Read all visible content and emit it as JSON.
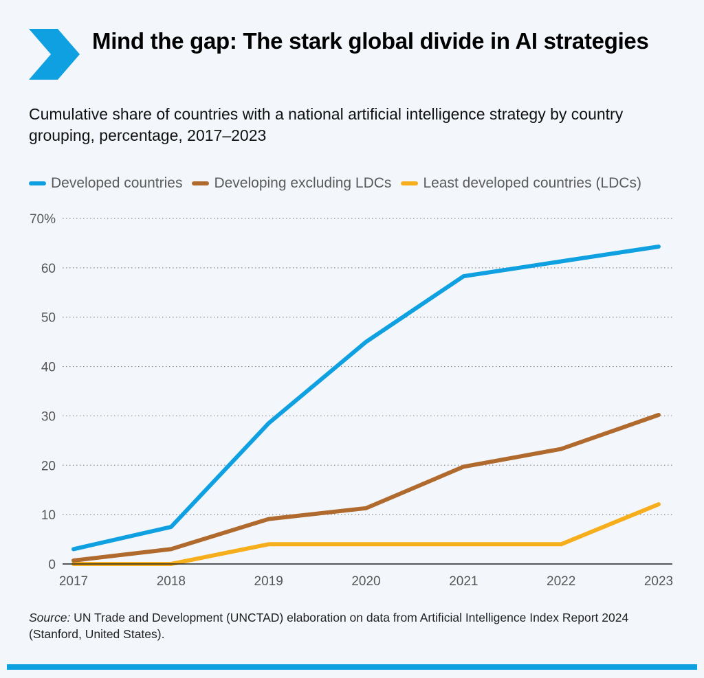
{
  "header": {
    "title": "Mind the gap: The stark global divide in AI strategies",
    "subtitle": "Cumulative share of countries with a national artificial intelligence strategy by country grouping, percentage, 2017–2023",
    "chevron_icon": "chevron-right-icon",
    "accent_color": "#0ea0e0"
  },
  "legend": {
    "items": [
      {
        "label": "Developed countries",
        "color": "#0ea0e0"
      },
      {
        "label": "Developing excluding LDCs",
        "color": "#b06a2e"
      },
      {
        "label": "Least developed countries (LDCs)",
        "color": "#f7ae1c"
      }
    ]
  },
  "chart_data": {
    "type": "line",
    "title": "",
    "xlabel": "",
    "ylabel": "",
    "x": [
      "2017",
      "2018",
      "2019",
      "2020",
      "2021",
      "2022",
      "2023"
    ],
    "y_ticks": [
      "0",
      "10",
      "20",
      "30",
      "40",
      "50",
      "60",
      "70%"
    ],
    "ylim": [
      0,
      70
    ],
    "grid": true,
    "grid_style": "dotted horizontal",
    "legend_position": "top-left",
    "series": [
      {
        "name": "Developed countries",
        "color": "#0ea0e0",
        "values": [
          3,
          7.5,
          28.5,
          45,
          58.3,
          61.3,
          64.3
        ]
      },
      {
        "name": "Developing excluding LDCs",
        "color": "#b06a2e",
        "values": [
          0.7,
          3,
          9.1,
          11.3,
          19.7,
          23.3,
          30.2
        ]
      },
      {
        "name": "Least developed countries (LDCs)",
        "color": "#f7ae1c",
        "values": [
          0,
          0,
          4,
          4,
          4,
          4,
          12.1
        ]
      }
    ]
  },
  "footer": {
    "source_prefix": "Source:",
    "source_text": " UN Trade and Development (UNCTAD) elaboration on data from Artificial Intelligence Index Report 2024 (Stanford, United States)."
  }
}
